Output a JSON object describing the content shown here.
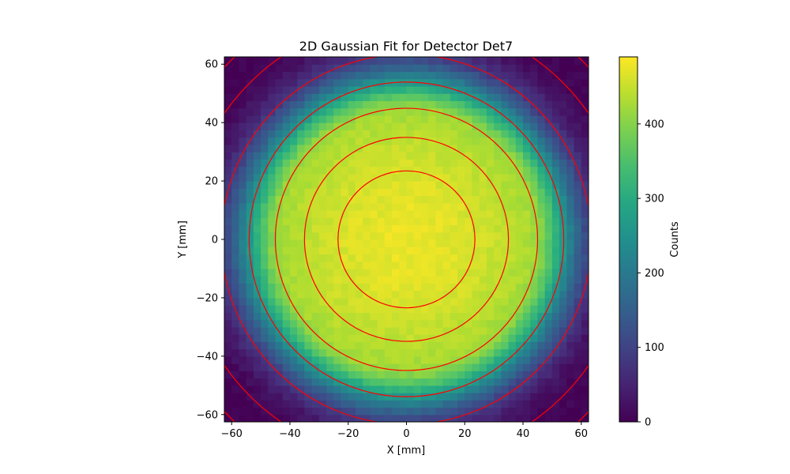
{
  "chart_data": {
    "type": "heatmap",
    "title": "2D Gaussian Fit for Detector Det7",
    "xlabel": "X [mm]",
    "ylabel": "Y [mm]",
    "xlim": [
      -62.5,
      62.5
    ],
    "ylim": [
      -62.5,
      62.5
    ],
    "grid": false,
    "x_ticks": [
      -60,
      -40,
      -20,
      0,
      20,
      40,
      60
    ],
    "y_ticks": [
      -60,
      -40,
      -20,
      0,
      20,
      40,
      60
    ],
    "x_tick_labels": [
      "−60",
      "−40",
      "−20",
      "0",
      "20",
      "40",
      "60"
    ],
    "y_tick_labels": [
      "−60",
      "−40",
      "−20",
      "0",
      "20",
      "40",
      "60"
    ],
    "heatmap": {
      "bins_x": 50,
      "bins_y": 50,
      "center": [
        0,
        0
      ],
      "peak_counts": 475,
      "detector_radius_mm": 62.5,
      "colormap": "viridis"
    },
    "colorbar": {
      "label": "Counts",
      "min": 0,
      "max": 490,
      "ticks": [
        0,
        100,
        200,
        300,
        400
      ],
      "tick_labels": [
        "0",
        "100",
        "200",
        "300",
        "400"
      ]
    },
    "contours": {
      "color": "#ff0000",
      "center": [
        0,
        0
      ],
      "radii_mm": [
        23.5,
        35,
        45,
        54,
        63.5,
        76,
        86
      ]
    }
  }
}
